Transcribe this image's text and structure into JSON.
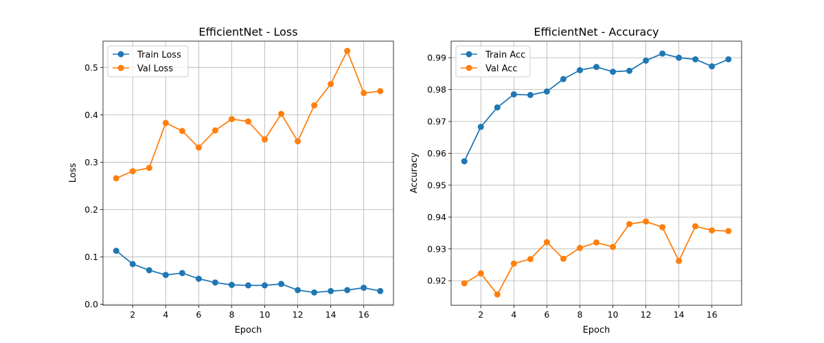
{
  "chart_data": [
    {
      "type": "line",
      "title": "EfficientNet - Loss",
      "xlabel": "Epoch",
      "ylabel": "Loss",
      "x": [
        1,
        2,
        3,
        4,
        5,
        6,
        7,
        8,
        9,
        10,
        11,
        12,
        13,
        14,
        15,
        16,
        17
      ],
      "xticks": [
        2,
        4,
        6,
        8,
        10,
        12,
        14,
        16
      ],
      "yticks": [
        0.0,
        0.1,
        0.2,
        0.3,
        0.4,
        0.5
      ],
      "ytick_labels": [
        "0.0",
        "0.1",
        "0.2",
        "0.3",
        "0.4",
        "0.5"
      ],
      "xlim": [
        0.2,
        17.8
      ],
      "ylim": [
        -0.002,
        0.5555
      ],
      "grid": true,
      "legend_position": "top-left",
      "series": [
        {
          "name": "Train Loss",
          "color": "#1f77b4",
          "values": [
            0.113,
            0.085,
            0.072,
            0.062,
            0.066,
            0.054,
            0.046,
            0.041,
            0.04,
            0.04,
            0.043,
            0.03,
            0.025,
            0.028,
            0.03,
            0.035,
            0.028
          ]
        },
        {
          "name": "Val Loss",
          "color": "#ff7f0e",
          "values": [
            0.266,
            0.281,
            0.288,
            0.383,
            0.366,
            0.331,
            0.367,
            0.391,
            0.386,
            0.348,
            0.402,
            0.344,
            0.42,
            0.465,
            0.535,
            0.446,
            0.45
          ]
        }
      ]
    },
    {
      "type": "line",
      "title": "EfficientNet - Accuracy",
      "xlabel": "Epoch",
      "ylabel": "Accuracy",
      "x": [
        1,
        2,
        3,
        4,
        5,
        6,
        7,
        8,
        9,
        10,
        11,
        12,
        13,
        14,
        15,
        16,
        17
      ],
      "xticks": [
        2,
        4,
        6,
        8,
        10,
        12,
        14,
        16
      ],
      "yticks": [
        0.92,
        0.93,
        0.94,
        0.95,
        0.96,
        0.97,
        0.98,
        0.99
      ],
      "ytick_labels": [
        "0.92",
        "0.93",
        "0.94",
        "0.95",
        "0.96",
        "0.97",
        "0.98",
        "0.99"
      ],
      "xlim": [
        0.2,
        17.8
      ],
      "ylim": [
        0.9123,
        0.9952
      ],
      "grid": true,
      "legend_position": "top-left",
      "series": [
        {
          "name": "Train Acc",
          "color": "#1f77b4",
          "values": [
            0.9575,
            0.9683,
            0.9744,
            0.9785,
            0.9783,
            0.9794,
            0.9833,
            0.9861,
            0.9871,
            0.9856,
            0.9859,
            0.9891,
            0.9913,
            0.99,
            0.9895,
            0.9873,
            0.9895
          ]
        },
        {
          "name": "Val Acc",
          "color": "#ff7f0e",
          "values": [
            0.9192,
            0.9223,
            0.9157,
            0.9254,
            0.9268,
            0.9321,
            0.9269,
            0.9303,
            0.932,
            0.9306,
            0.9378,
            0.9386,
            0.9368,
            0.9262,
            0.9371,
            0.9358,
            0.9356
          ]
        }
      ]
    }
  ]
}
